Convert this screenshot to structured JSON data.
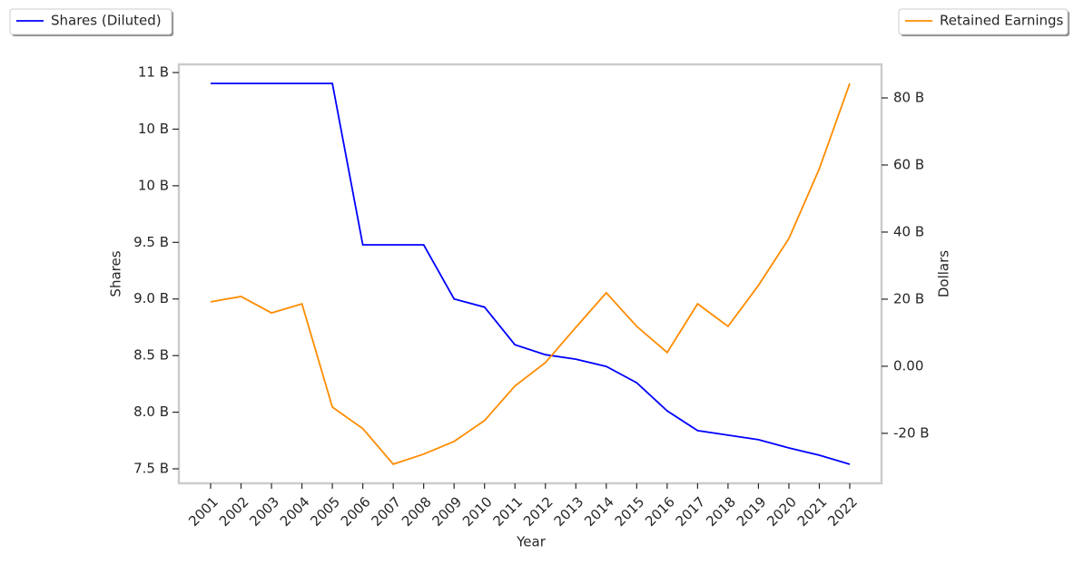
{
  "chart_data": {
    "type": "line",
    "x_label": "Year",
    "y_label": "Shares",
    "y2_label": "Dollars",
    "categories": [
      "2001",
      "2002",
      "2003",
      "2004",
      "2005",
      "2006",
      "2007",
      "2008",
      "2009",
      "2010",
      "2011",
      "2012",
      "2013",
      "2014",
      "2015",
      "2016",
      "2017",
      "2018",
      "2019",
      "2020",
      "2021",
      "2022"
    ],
    "ylim": [
      7372000000,
      11072000000
    ],
    "yticks": [
      {
        "value": 7500000000,
        "label": "7.5 B"
      },
      {
        "value": 8000000000,
        "label": "8.0 B"
      },
      {
        "value": 8500000000,
        "label": "8.5 B"
      },
      {
        "value": 9000000000,
        "label": "9.0 B"
      },
      {
        "value": 9500000000,
        "label": "9.5 B"
      },
      {
        "value": 10000000000,
        "label": "10 B"
      },
      {
        "value": 10500000000,
        "label": "10 B"
      },
      {
        "value": 11000000000,
        "label": "11 B"
      }
    ],
    "y2lim": [
      -34900000000,
      90000000000
    ],
    "y2ticks": [
      {
        "value": -20000000000,
        "label": "-20 B"
      },
      {
        "value": 0,
        "label": "0.00"
      },
      {
        "value": 20000000000,
        "label": "20 B"
      },
      {
        "value": 40000000000,
        "label": "40 B"
      },
      {
        "value": 60000000000,
        "label": "60 B"
      },
      {
        "value": 80000000000,
        "label": "80 B"
      }
    ],
    "grid": false,
    "series": [
      {
        "name": "Shares (Diluted)",
        "color": "#0000ff",
        "axis": "y",
        "legend": "upper left",
        "values": [
          10904000000,
          10904000000,
          10904000000,
          10904000000,
          10904000000,
          9478000000,
          9478000000,
          9478000000,
          9000000000,
          8928000000,
          8596000000,
          8508000000,
          8468000000,
          8404000000,
          8260000000,
          8012000000,
          7837000000,
          7797000000,
          7757000000,
          7684000000,
          7620000000,
          7540000000
        ]
      },
      {
        "name": "Retained Earnings",
        "color": "#ff8c00",
        "axis": "y2",
        "legend": "upper right",
        "values": [
          19200000000,
          20800000000,
          15900000000,
          18600000000,
          -12200000000,
          -18600000000,
          -29200000000,
          -26200000000,
          -22400000000,
          -16200000000,
          -5900000000,
          1100000000,
          11600000000,
          21900000000,
          11900000000,
          4100000000,
          18600000000,
          11900000000,
          24100000000,
          38100000000,
          58900000000,
          84300000000
        ]
      }
    ]
  }
}
